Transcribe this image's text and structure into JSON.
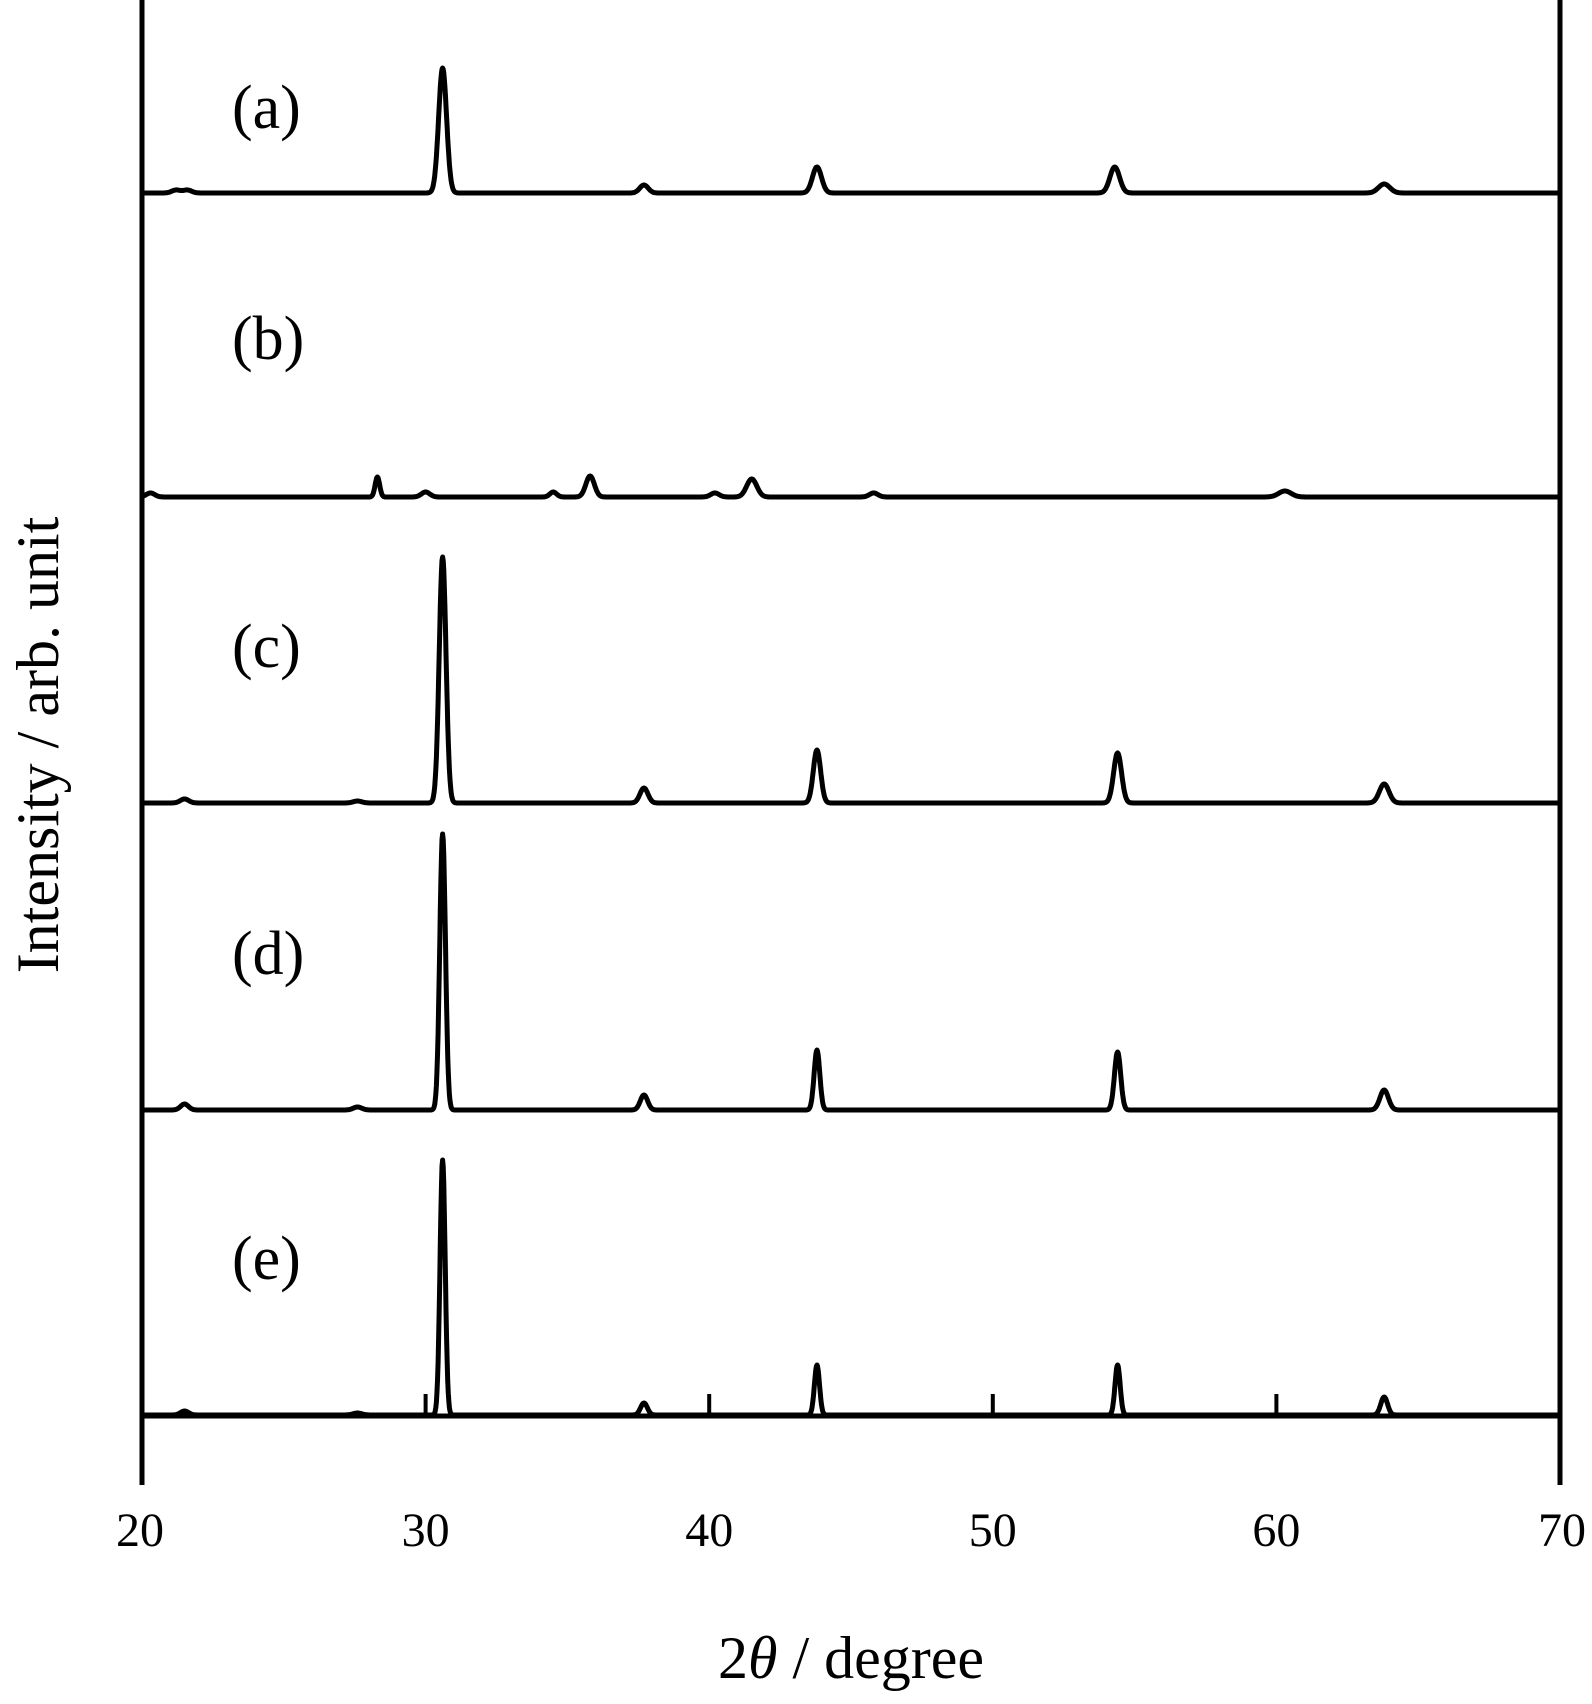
{
  "chart_data": {
    "type": "line",
    "xlabel_prefix": "2",
    "xlabel_symbol": "θ",
    "xlabel_suffix": " / degree",
    "ylabel": "Intensity / arb. unit",
    "xlim": [
      20,
      70
    ],
    "x_ticks": [
      "20",
      "30",
      "40",
      "50",
      "60",
      "70"
    ],
    "y_ticks_shown": false,
    "grid": false,
    "layout": "stacked offset patterns",
    "series": [
      {
        "name": "(a)",
        "peaks": [
          {
            "x": 21.2,
            "h": 3,
            "w": 0.15
          },
          {
            "x": 21.6,
            "h": 3,
            "w": 0.15
          },
          {
            "x": 30.6,
            "h": 125,
            "w": 0.14
          },
          {
            "x": 37.7,
            "h": 8,
            "w": 0.15
          },
          {
            "x": 43.8,
            "h": 26,
            "w": 0.16
          },
          {
            "x": 54.3,
            "h": 26,
            "w": 0.17
          },
          {
            "x": 63.8,
            "h": 9,
            "w": 0.2
          }
        ]
      },
      {
        "name": "(b)",
        "peaks": [
          {
            "x": 20.3,
            "h": 4,
            "w": 0.15
          },
          {
            "x": 28.3,
            "h": 20,
            "w": 0.08
          },
          {
            "x": 30.0,
            "h": 5,
            "w": 0.15
          },
          {
            "x": 34.5,
            "h": 5,
            "w": 0.12
          },
          {
            "x": 35.8,
            "h": 21,
            "w": 0.15
          },
          {
            "x": 40.2,
            "h": 4,
            "w": 0.15
          },
          {
            "x": 41.5,
            "h": 18,
            "w": 0.18
          },
          {
            "x": 45.8,
            "h": 4,
            "w": 0.15
          },
          {
            "x": 60.3,
            "h": 6,
            "w": 0.22
          }
        ]
      },
      {
        "name": "(c)",
        "peaks": [
          {
            "x": 21.5,
            "h": 4,
            "w": 0.15
          },
          {
            "x": 27.6,
            "h": 2,
            "w": 0.15
          },
          {
            "x": 30.6,
            "h": 246,
            "w": 0.12
          },
          {
            "x": 37.7,
            "h": 15,
            "w": 0.14
          },
          {
            "x": 43.8,
            "h": 53,
            "w": 0.13
          },
          {
            "x": 54.4,
            "h": 50,
            "w": 0.14
          },
          {
            "x": 63.8,
            "h": 19,
            "w": 0.17
          }
        ]
      },
      {
        "name": "(d)",
        "peaks": [
          {
            "x": 21.5,
            "h": 6,
            "w": 0.14
          },
          {
            "x": 27.6,
            "h": 3,
            "w": 0.15
          },
          {
            "x": 30.6,
            "h": 276,
            "w": 0.1
          },
          {
            "x": 37.7,
            "h": 15,
            "w": 0.13
          },
          {
            "x": 43.8,
            "h": 60,
            "w": 0.1
          },
          {
            "x": 54.4,
            "h": 58,
            "w": 0.11
          },
          {
            "x": 63.8,
            "h": 20,
            "w": 0.15
          }
        ]
      },
      {
        "name": "(e)",
        "peaks": [
          {
            "x": 21.5,
            "h": 4,
            "w": 0.14
          },
          {
            "x": 27.6,
            "h": 2,
            "w": 0.15
          },
          {
            "x": 30.6,
            "h": 255,
            "w": 0.09
          },
          {
            "x": 37.7,
            "h": 12,
            "w": 0.12
          },
          {
            "x": 43.8,
            "h": 50,
            "w": 0.09
          },
          {
            "x": 54.4,
            "h": 50,
            "w": 0.09
          },
          {
            "x": 63.8,
            "h": 18,
            "w": 0.12
          }
        ]
      }
    ]
  }
}
